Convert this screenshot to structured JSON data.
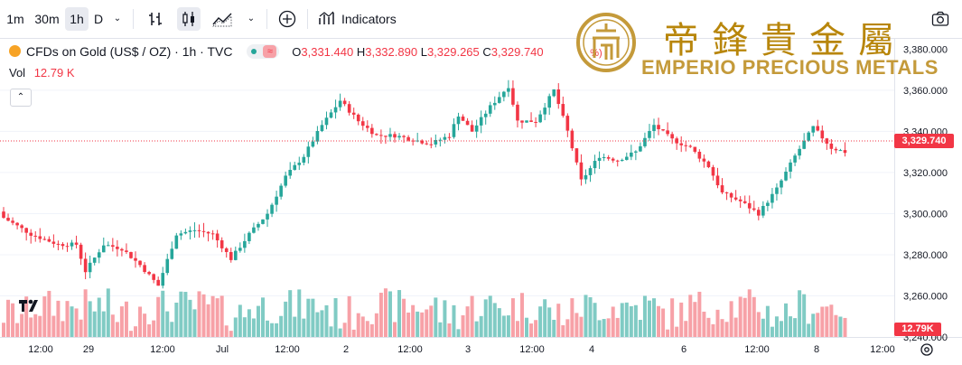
{
  "toolbar": {
    "timeframes": [
      "1m",
      "30m",
      "1h",
      "D"
    ],
    "active_timeframe": "1h",
    "indicators_label": "Indicators"
  },
  "legend": {
    "symbol_title": "CFDs on Gold (US$ / OZ) · 1h · TVC",
    "open_label": "O",
    "open_value": "3,331.440",
    "high_label": "H",
    "high_value": "3,332.890",
    "low_label": "L",
    "low_value": "3,329.265",
    "close_label": "C",
    "close_value": "3,329.740",
    "change_partial": "%)",
    "volume_label": "Vol",
    "volume_value": "12.79 K"
  },
  "brand": {
    "chinese_chars": [
      "帝",
      "鋒",
      "貴",
      "金",
      "屬"
    ],
    "name": "EMPERIO PRECIOUS METALS"
  },
  "price_axis": {
    "ticks": [
      "3,360.000",
      "3,340.000",
      "3,320.000",
      "3,300.000",
      "3,280.000",
      "3,260.000"
    ],
    "top_partial": "3,380.000",
    "bottom_partial": "3,240.000",
    "current_price": "3,329.740",
    "current_volume": "12.79K"
  },
  "time_axis": {
    "labels": [
      "12:00",
      "29",
      "12:00",
      "Jul",
      "12:00",
      "2",
      "12:00",
      "3",
      "12:00",
      "4",
      "6",
      "12:00",
      "8",
      "12:00"
    ]
  },
  "colors": {
    "up": "#26a69a",
    "down": "#f23645",
    "vol_up": "#80cbc4",
    "vol_down": "#f7a1a7",
    "brand_gold": "#c49a3a"
  },
  "chart_data": {
    "type": "candlestick",
    "symbol": "CFDs on Gold (US$ / OZ)",
    "interval": "1h",
    "ylim": [
      3240,
      3385
    ],
    "last_price": 3329.74,
    "close_path": [
      [
        0,
        3298
      ],
      [
        6,
        3290
      ],
      [
        12,
        3285
      ],
      [
        16,
        3285
      ],
      [
        18,
        3272
      ],
      [
        22,
        3285
      ],
      [
        26,
        3283
      ],
      [
        30,
        3275
      ],
      [
        34,
        3265
      ],
      [
        38,
        3290
      ],
      [
        42,
        3292
      ],
      [
        46,
        3290
      ],
      [
        50,
        3278
      ],
      [
        54,
        3290
      ],
      [
        58,
        3300
      ],
      [
        62,
        3318
      ],
      [
        66,
        3328
      ],
      [
        70,
        3343
      ],
      [
        74,
        3355
      ],
      [
        78,
        3345
      ],
      [
        82,
        3338
      ],
      [
        86,
        3338
      ],
      [
        90,
        3336
      ],
      [
        94,
        3334
      ],
      [
        98,
        3338
      ],
      [
        100,
        3348
      ],
      [
        103,
        3340
      ],
      [
        107,
        3352
      ],
      [
        111,
        3362
      ],
      [
        113,
        3345
      ],
      [
        117,
        3345
      ],
      [
        121,
        3360
      ],
      [
        124,
        3340
      ],
      [
        127,
        3316
      ],
      [
        131,
        3328
      ],
      [
        135,
        3326
      ],
      [
        139,
        3330
      ],
      [
        143,
        3343
      ],
      [
        147,
        3336
      ],
      [
        151,
        3332
      ],
      [
        155,
        3323
      ],
      [
        158,
        3310
      ],
      [
        162,
        3306
      ],
      [
        166,
        3300
      ],
      [
        170,
        3312
      ],
      [
        174,
        3328
      ],
      [
        178,
        3342
      ],
      [
        182,
        3332
      ],
      [
        185,
        3330
      ]
    ],
    "volume": {
      "up_color": "#80cbc4",
      "down_color": "#f7a1a7",
      "last_volume_k": 12.79
    }
  }
}
